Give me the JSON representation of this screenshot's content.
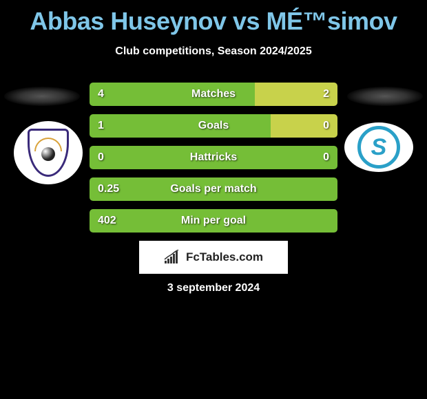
{
  "title": "Abbas Huseynov vs MÉ™simov",
  "subtitle": "Club competitions, Season 2024/2025",
  "date": "3 september 2024",
  "brand": "FcTables.com",
  "colors": {
    "title_color": "#7fc6e8",
    "bar_left": "#75be37",
    "bar_right": "#c8d24b",
    "background": "#000000",
    "text": "#ffffff"
  },
  "player_left": {
    "name": "Abbas Huseynov",
    "logo_primary": "#3a2a7a",
    "logo_accent": "#d9a23a"
  },
  "player_right": {
    "name": "MÉ™simov",
    "logo_primary": "#2aa0c8"
  },
  "stats": [
    {
      "label": "Matches",
      "left_val": "4",
      "right_val": "2",
      "left_pct": 66.7,
      "right_pct": 33.3
    },
    {
      "label": "Goals",
      "left_val": "1",
      "right_val": "0",
      "left_pct": 73.0,
      "right_pct": 27.0
    },
    {
      "label": "Hattricks",
      "left_val": "0",
      "right_val": "0",
      "left_pct": 100,
      "right_pct": 0,
      "full_left": true
    },
    {
      "label": "Goals per match",
      "left_val": "0.25",
      "right_val": "",
      "left_pct": 100,
      "right_pct": 0,
      "full_left": true
    },
    {
      "label": "Min per goal",
      "left_val": "402",
      "right_val": "",
      "left_pct": 100,
      "right_pct": 0,
      "full_left": true
    }
  ],
  "brand_chart": {
    "bars": [
      4,
      7,
      10,
      14,
      18,
      22
    ],
    "color": "#333333"
  }
}
